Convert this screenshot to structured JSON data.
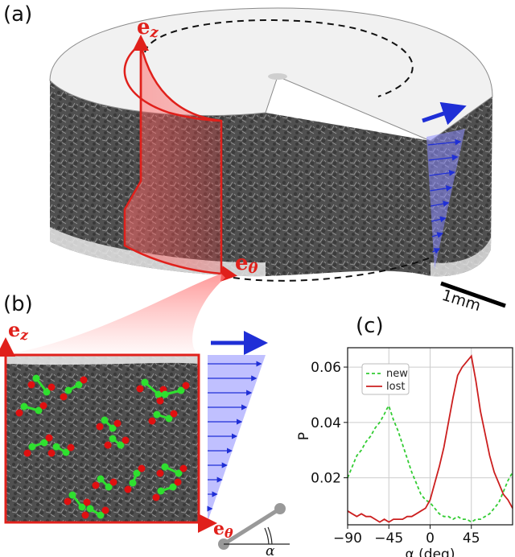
{
  "figure": {
    "panel_a": {
      "label": "(a)",
      "vector_z": "e",
      "vector_z_sub": "z",
      "vector_theta": "e",
      "vector_theta_sub": "θ",
      "scale_bar": "1mm"
    },
    "panel_b": {
      "label": "(b)",
      "vector_z": "e",
      "vector_z_sub": "z",
      "vector_theta": "e",
      "vector_theta_sub": "θ",
      "angle_symbol": "α"
    },
    "panel_c": {
      "label": "(c)"
    }
  },
  "chart_data": {
    "type": "line",
    "xlabel": "α (deg)",
    "ylabel": "P",
    "xlim": [
      -90,
      90
    ],
    "ylim": [
      0.003,
      0.067
    ],
    "xticks": [
      "−90",
      "−45",
      "0",
      "45"
    ],
    "xtick_values": [
      -90,
      -45,
      0,
      45
    ],
    "yticks": [
      "0.02",
      "0.04",
      "0.06"
    ],
    "ytick_values": [
      0.02,
      0.04,
      0.06
    ],
    "grid": true,
    "legend_position": "top-left",
    "series": [
      {
        "name": "new",
        "color": "#33cc33",
        "style": "dashed",
        "x": [
          -90,
          -85,
          -80,
          -75,
          -70,
          -65,
          -60,
          -55,
          -50,
          -47,
          -45,
          -43,
          -40,
          -35,
          -30,
          -25,
          -20,
          -15,
          -10,
          -5,
          0,
          5,
          10,
          15,
          20,
          25,
          30,
          35,
          40,
          45,
          50,
          55,
          60,
          65,
          70,
          75,
          80,
          85,
          90
        ],
        "y": [
          0.02,
          0.024,
          0.028,
          0.03,
          0.033,
          0.035,
          0.038,
          0.04,
          0.043,
          0.045,
          0.046,
          0.044,
          0.041,
          0.037,
          0.032,
          0.027,
          0.022,
          0.018,
          0.014,
          0.012,
          0.011,
          0.009,
          0.007,
          0.006,
          0.006,
          0.005,
          0.006,
          0.005,
          0.005,
          0.004,
          0.005,
          0.005,
          0.006,
          0.007,
          0.009,
          0.011,
          0.015,
          0.019,
          0.022
        ]
      },
      {
        "name": "lost",
        "color": "#cc1f1f",
        "style": "solid",
        "x": [
          -90,
          -85,
          -80,
          -75,
          -70,
          -65,
          -60,
          -55,
          -50,
          -45,
          -40,
          -35,
          -30,
          -25,
          -20,
          -15,
          -10,
          -5,
          0,
          5,
          10,
          15,
          20,
          25,
          30,
          35,
          40,
          45,
          50,
          55,
          60,
          65,
          70,
          75,
          80,
          85,
          90
        ],
        "y": [
          0.008,
          0.007,
          0.006,
          0.007,
          0.006,
          0.006,
          0.005,
          0.004,
          0.005,
          0.004,
          0.005,
          0.005,
          0.005,
          0.006,
          0.006,
          0.007,
          0.008,
          0.009,
          0.012,
          0.018,
          0.024,
          0.031,
          0.04,
          0.049,
          0.057,
          0.06,
          0.062,
          0.064,
          0.055,
          0.044,
          0.036,
          0.028,
          0.022,
          0.018,
          0.014,
          0.012,
          0.009
        ]
      }
    ]
  },
  "colors": {
    "accent_red": "#e0201b",
    "shear_blue": "#1f2fd6",
    "shear_fill": "#8c8cff",
    "contact_green": "#2fe02f",
    "contact_red": "#e01010"
  }
}
